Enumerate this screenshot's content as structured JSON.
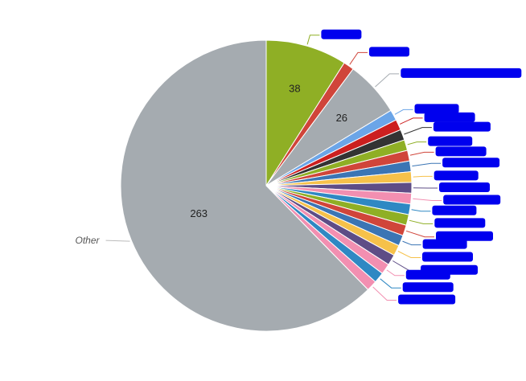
{
  "chart_data": {
    "type": "pie",
    "title": "",
    "legend": "none",
    "data_labels_shown": [
      "38",
      "26",
      "263"
    ],
    "outer_label_shown": "Other",
    "slices": [
      {
        "label": "",
        "value": 38,
        "color": "#8faf25",
        "show_value": true
      },
      {
        "label": "",
        "value": 5,
        "color": "#d0453a",
        "show_value": false
      },
      {
        "label": "",
        "value": 26,
        "color": "#a5abb0",
        "show_value": true
      },
      {
        "label": "",
        "value": 5,
        "color": "#6ba5e8",
        "show_value": false
      },
      {
        "label": "",
        "value": 5,
        "color": "#cc1f1f",
        "show_value": false
      },
      {
        "label": "",
        "value": 5,
        "color": "#333333",
        "show_value": false
      },
      {
        "label": "",
        "value": 5,
        "color": "#8faf25",
        "show_value": false
      },
      {
        "label": "",
        "value": 5,
        "color": "#d0453a",
        "show_value": false
      },
      {
        "label": "",
        "value": 5,
        "color": "#3b75b4",
        "show_value": false
      },
      {
        "label": "",
        "value": 5,
        "color": "#f6c14a",
        "show_value": false
      },
      {
        "label": "",
        "value": 5,
        "color": "#5e4d86",
        "show_value": false
      },
      {
        "label": "",
        "value": 5,
        "color": "#f28fb1",
        "show_value": false
      },
      {
        "label": "",
        "value": 5,
        "color": "#2f88c3",
        "show_value": false
      },
      {
        "label": "",
        "value": 5,
        "color": "#8faf25",
        "show_value": false
      },
      {
        "label": "",
        "value": 5,
        "color": "#d0453a",
        "show_value": false
      },
      {
        "label": "",
        "value": 5,
        "color": "#3b75b4",
        "show_value": false
      },
      {
        "label": "",
        "value": 5,
        "color": "#f6c14a",
        "show_value": false
      },
      {
        "label": "",
        "value": 5,
        "color": "#5e4d86",
        "show_value": false
      },
      {
        "label": "",
        "value": 5,
        "color": "#f28fb1",
        "show_value": false
      },
      {
        "label": "",
        "value": 5,
        "color": "#2f88c3",
        "show_value": false
      },
      {
        "label": "",
        "value": 5,
        "color": "#f28fb1",
        "show_value": false
      },
      {
        "label": "Other",
        "value": 263,
        "color": "#a5abb0",
        "show_value": true
      }
    ],
    "redacted_label_color": "#0000ee"
  }
}
